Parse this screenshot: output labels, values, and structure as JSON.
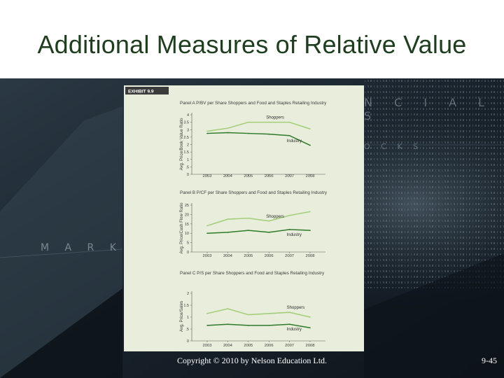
{
  "slide": {
    "title": "Additional Measures of Relative Value",
    "copyright": "Copyright © 2010 by Nelson Education Ltd.",
    "page_number": "9-45"
  },
  "background": {
    "text_top": "N C I A L S",
    "text_mid": "O C K S",
    "text_left": "M A R K E T E"
  },
  "exhibit": {
    "label": "EXHIBIT 9.9",
    "colors": {
      "panel_bg": "#e8eedb",
      "header_bg": "#3b3b3b",
      "shoppers": "#a3cf7c",
      "industry": "#2e7a2a"
    }
  },
  "chart_data": [
    {
      "type": "line",
      "title": "Panel A P/BV per Share Shoppers and Food and Staples Retailing Industry",
      "ylabel": "Avg. Price/Book Value Ratio",
      "x": [
        "2003",
        "2004",
        "2005",
        "2006",
        "2007",
        "2008"
      ],
      "ylim": [
        0,
        4
      ],
      "yticks": [
        "0",
        ".5",
        "1",
        "1.5",
        "2",
        "2.5",
        "3",
        "3.5",
        "4"
      ],
      "series": [
        {
          "name": "Shoppers",
          "values": [
            2.9,
            3.1,
            3.5,
            3.5,
            3.5,
            3.05
          ]
        },
        {
          "name": "Industry",
          "values": [
            2.75,
            2.8,
            2.75,
            2.7,
            2.6,
            1.95
          ]
        }
      ]
    },
    {
      "type": "line",
      "title": "Panel B P/CF per Share Shoppers and Food and Staples Retailing Industry",
      "ylabel": "Avg. Price/Cash Flow Ratio",
      "x": [
        "2003",
        "2004",
        "2005",
        "2006",
        "2007",
        "2008"
      ],
      "ylim": [
        0,
        25
      ],
      "yticks": [
        "0",
        "5",
        "10",
        "15",
        "20",
        "25"
      ],
      "series": [
        {
          "name": "Shoppers",
          "values": [
            14,
            17.5,
            18,
            16.5,
            19.5,
            21.5
          ]
        },
        {
          "name": "Industry",
          "values": [
            10,
            10.5,
            11.5,
            10.5,
            12,
            11.5
          ]
        }
      ]
    },
    {
      "type": "line",
      "title": "Panel C P/S per Share Shoppers and Food and Staples Retailing Industry",
      "ylabel": "Avg. Price/Sales",
      "x": [
        "2003",
        "2004",
        "2005",
        "2006",
        "2007",
        "2008"
      ],
      "ylim": [
        0,
        2
      ],
      "yticks": [
        "0",
        ".5",
        "1",
        "1.5",
        "2"
      ],
      "series": [
        {
          "name": "Shoppers",
          "values": [
            1.15,
            1.35,
            1.1,
            1.15,
            1.2,
            1.0
          ]
        },
        {
          "name": "Industry",
          "values": [
            0.65,
            0.7,
            0.65,
            0.65,
            0.7,
            0.55
          ]
        }
      ]
    }
  ]
}
